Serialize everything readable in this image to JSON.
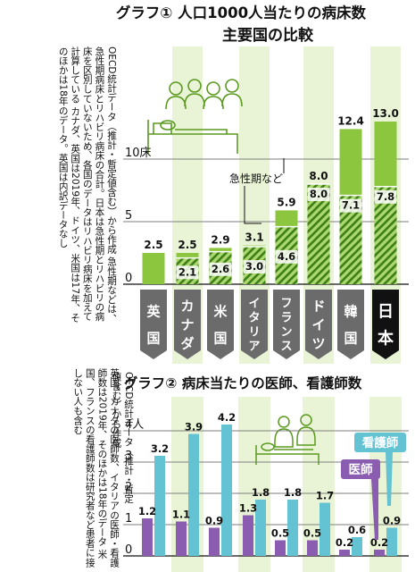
{
  "colors": {
    "green": "#8cc63f",
    "green_dark": "#5a9a1f",
    "stripe_bg": "#a9d86e",
    "hatch": "#3f7d16",
    "column_band": "#e9f4d6",
    "dark": "#111111",
    "gray": "#6b6b6b",
    "purple": "#8a5db0",
    "teal": "#63c3d3",
    "grid": "#7e7e7e"
  },
  "icons": [
    "hospital-bed-illustration",
    "doctor-nurse-illustration"
  ],
  "chart_data": [
    {
      "type": "bar",
      "title": "グラフ① 人口1000人当たりの病床数",
      "subtitle": "主要国の比較",
      "ylim": [
        0,
        14
      ],
      "yticks": [
        {
          "value": 0,
          "label": "0"
        },
        {
          "value": 5,
          "label": "5"
        },
        {
          "value": 10,
          "label": "10床"
        }
      ],
      "categories": [
        "英国",
        "カナダ",
        "米国",
        "イタリア",
        "フランス",
        "ドイツ",
        "韓国",
        "日本"
      ],
      "category_glyphs": [
        [
          "英",
          "国"
        ],
        [
          "カ",
          "ナ",
          "ダ"
        ],
        [
          "米",
          "国"
        ],
        [
          "イ",
          "タ",
          "リ",
          "ア"
        ],
        [
          "フ",
          "ラ",
          "ン",
          "ス"
        ],
        [
          "ド",
          "イ",
          "ツ"
        ],
        [
          "韓",
          "国"
        ],
        [
          "日",
          "本"
        ]
      ],
      "highlight": "日本",
      "series": [
        {
          "values": [
            2.5,
            2.5,
            2.9,
            3.1,
            5.9,
            8.0,
            12.4,
            13.0
          ]
        },
        {
          "name": "急性期など",
          "values": [
            null,
            2.1,
            2.6,
            3.0,
            4.6,
            8.0,
            7.1,
            7.8
          ]
        }
      ],
      "total_labels": [
        "2.5",
        "2.5",
        "2.9",
        "3.1",
        "5.9",
        "8.0",
        "12.4",
        "13.0"
      ],
      "acute_labels": [
        "",
        "2.1",
        "2.6",
        "3.0",
        "4.6",
        "8.0",
        "7.1",
        "7.8"
      ],
      "annotation": "急性期など",
      "note": "OECD統計データ（推計・暫定値含む）から作成 急性期などは、急性期病床とリハビリ病床の合計。日本は急性期とリハビリの病床を区別していないため、各国のデータはリハビリ病床を加えて計算している カナダ、英国は2019年、ドイツ、米国は17年、そのほかは18年のデータ。英国は内訳データなし"
    },
    {
      "type": "bar",
      "title": "グラフ② 病床当たりの医師、看護師数",
      "ylim": [
        0,
        4.4
      ],
      "yticks": [
        {
          "value": 0,
          "label": "0"
        },
        {
          "value": 1,
          "label": "1"
        },
        {
          "value": 2,
          "label": "2"
        },
        {
          "value": 3,
          "label": "3"
        },
        {
          "value": 4,
          "label": "4人"
        }
      ],
      "categories": [
        "英国",
        "カナダ",
        "米国",
        "イタリア",
        "フランス",
        "ドイツ",
        "韓国",
        "日本"
      ],
      "series": [
        {
          "name": "医師",
          "values": [
            1.2,
            1.1,
            0.9,
            1.3,
            0.5,
            0.5,
            0.2,
            0.2
          ]
        },
        {
          "name": "看護師",
          "values": [
            3.2,
            3.9,
            4.2,
            1.8,
            1.8,
            1.7,
            0.6,
            0.9
          ]
        }
      ],
      "doctor_labels": [
        "1.2",
        "1.1",
        "0.9",
        "1.3",
        "0.5",
        "0.5",
        "0.2",
        "0.2"
      ],
      "nurse_labels": [
        "3.2",
        "3.9",
        "4.2",
        "1.8",
        "1.8",
        "1.7",
        "0.6",
        "0.9"
      ],
      "legend": {
        "nurse": "看護師",
        "doctor": "医師"
      },
      "note1": "OECD統計データ（推計・暫定値含む）から作成",
      "note2": "英国、カナダの医師数、イタリアの医師・看護師数は2019年、そのほかは18年のデータ 米国、フランスの看護師数は研究者など患者に接しない人も含む"
    }
  ]
}
